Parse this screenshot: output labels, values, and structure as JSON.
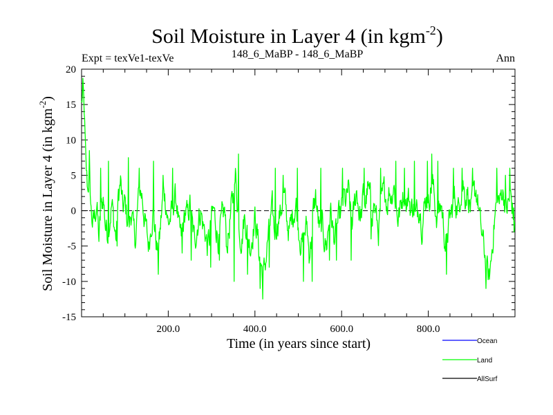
{
  "chart_data": {
    "type": "line",
    "title": "Soil Moisture in Layer 4 (in kgm",
    "title_sup": "-2",
    "title_close": ")",
    "subtitle_left": "Expt = texVe1-texVe",
    "subtitle_center": "148_6_MaBP - 148_6_MaBP",
    "subtitle_right": "Ann",
    "xlabel": "Time (in years since start)",
    "ylabel": "Soil Moisture in Layer 4 (in kgm",
    "ylabel_sup": "-2",
    "ylabel_close": ")",
    "xlim": [
      0,
      1000
    ],
    "ylim": [
      -15,
      20
    ],
    "xticks": [
      200,
      400,
      600,
      800
    ],
    "xtick_labels": [
      "200.0",
      "400.0",
      "600.0",
      "800.0"
    ],
    "yticks": [
      -15,
      -10,
      -5,
      0,
      5,
      10,
      15,
      20
    ],
    "ytick_labels": [
      "-15",
      "-10",
      "-5",
      "0",
      "5",
      "10",
      "15",
      "20"
    ],
    "zero_line": 0,
    "legend_position": "bottom-right",
    "series": [
      {
        "name": "Ocean",
        "color": "#0000ff",
        "values": []
      },
      {
        "name": "Land",
        "color": "#00ff00",
        "anchors": [
          [
            0,
            15
          ],
          [
            3,
            17
          ],
          [
            6,
            14
          ],
          [
            10,
            6
          ],
          [
            14,
            3
          ],
          [
            18,
            5
          ],
          [
            22,
            0
          ],
          [
            26,
            -2
          ],
          [
            30,
            -1
          ],
          [
            35,
            1
          ],
          [
            40,
            -4
          ],
          [
            45,
            0
          ],
          [
            50,
            2
          ],
          [
            55,
            -2
          ],
          [
            60,
            -3
          ],
          [
            65,
            -1
          ],
          [
            70,
            1
          ],
          [
            75,
            -2
          ],
          [
            80,
            -4
          ],
          [
            85,
            2
          ],
          [
            90,
            4
          ],
          [
            95,
            0
          ],
          [
            100,
            1
          ],
          [
            105,
            -1
          ],
          [
            110,
            -2
          ],
          [
            115,
            0
          ],
          [
            120,
            -3
          ],
          [
            125,
            -4
          ],
          [
            130,
            1
          ],
          [
            135,
            3
          ],
          [
            140,
            2
          ],
          [
            145,
            -1
          ],
          [
            150,
            -3
          ],
          [
            155,
            -5
          ],
          [
            160,
            -2
          ],
          [
            165,
            0
          ],
          [
            170,
            -3
          ],
          [
            175,
            -6
          ],
          [
            180,
            -4
          ],
          [
            185,
            0
          ],
          [
            190,
            3
          ],
          [
            195,
            1
          ],
          [
            200,
            -2
          ],
          [
            205,
            -1
          ],
          [
            210,
            0
          ],
          [
            215,
            2
          ],
          [
            220,
            1
          ],
          [
            225,
            -3
          ],
          [
            230,
            -4
          ],
          [
            235,
            -2
          ],
          [
            240,
            0
          ],
          [
            245,
            -1
          ],
          [
            250,
            1
          ],
          [
            255,
            -2
          ],
          [
            260,
            -4
          ],
          [
            265,
            -3
          ],
          [
            270,
            -1
          ],
          [
            275,
            0
          ],
          [
            280,
            -2
          ],
          [
            285,
            -3
          ],
          [
            290,
            -5
          ],
          [
            295,
            -4
          ],
          [
            300,
            -1
          ],
          [
            305,
            0
          ],
          [
            310,
            -2
          ],
          [
            315,
            -4
          ],
          [
            320,
            -3
          ],
          [
            325,
            -1
          ],
          [
            330,
            0
          ],
          [
            335,
            -5
          ],
          [
            340,
            -3
          ],
          [
            345,
            0
          ],
          [
            350,
            2
          ],
          [
            355,
            5
          ],
          [
            360,
            1
          ],
          [
            365,
            -3
          ],
          [
            370,
            -4
          ],
          [
            375,
            -1
          ],
          [
            380,
            -2
          ],
          [
            385,
            -4
          ],
          [
            390,
            -5
          ],
          [
            395,
            -3
          ],
          [
            400,
            -1
          ],
          [
            405,
            -3
          ],
          [
            410,
            -6
          ],
          [
            415,
            -8
          ],
          [
            420,
            -9
          ],
          [
            425,
            -7
          ],
          [
            430,
            -4
          ],
          [
            435,
            -2
          ],
          [
            440,
            0
          ],
          [
            445,
            -3
          ],
          [
            450,
            -2
          ],
          [
            455,
            -1
          ],
          [
            460,
            0
          ],
          [
            465,
            2
          ],
          [
            470,
            1
          ],
          [
            475,
            -2
          ],
          [
            480,
            -3
          ],
          [
            485,
            -1
          ],
          [
            490,
            0
          ],
          [
            495,
            1
          ],
          [
            500,
            -2
          ],
          [
            505,
            -4
          ],
          [
            510,
            -5
          ],
          [
            515,
            -3
          ],
          [
            520,
            -2
          ],
          [
            525,
            -6
          ],
          [
            530,
            -4
          ],
          [
            535,
            0
          ],
          [
            540,
            2
          ],
          [
            545,
            -1
          ],
          [
            550,
            -3
          ],
          [
            555,
            -2
          ],
          [
            560,
            -4
          ],
          [
            565,
            -5
          ],
          [
            570,
            -2
          ],
          [
            575,
            0
          ],
          [
            580,
            -3
          ],
          [
            585,
            -4
          ],
          [
            590,
            -2
          ],
          [
            595,
            -1
          ],
          [
            600,
            0
          ],
          [
            605,
            2
          ],
          [
            610,
            1
          ],
          [
            615,
            3
          ],
          [
            620,
            0
          ],
          [
            625,
            -2
          ],
          [
            630,
            1
          ],
          [
            635,
            3
          ],
          [
            640,
            0
          ],
          [
            645,
            -1
          ],
          [
            650,
            2
          ],
          [
            655,
            1
          ],
          [
            660,
            3
          ],
          [
            665,
            2
          ],
          [
            670,
            0
          ],
          [
            675,
            1
          ],
          [
            680,
            -1
          ],
          [
            685,
            -3
          ],
          [
            690,
            0
          ],
          [
            695,
            2
          ],
          [
            700,
            3
          ],
          [
            705,
            1
          ],
          [
            710,
            3
          ],
          [
            715,
            2
          ],
          [
            720,
            4
          ],
          [
            725,
            1
          ],
          [
            730,
            -1
          ],
          [
            735,
            0
          ],
          [
            740,
            2
          ],
          [
            745,
            3
          ],
          [
            750,
            1
          ],
          [
            755,
            2
          ],
          [
            760,
            0
          ],
          [
            765,
            1
          ],
          [
            770,
            -1
          ],
          [
            775,
            0
          ],
          [
            780,
            1
          ],
          [
            785,
            -2
          ],
          [
            790,
            0
          ],
          [
            795,
            2
          ],
          [
            800,
            1
          ],
          [
            805,
            3
          ],
          [
            810,
            4
          ],
          [
            815,
            1
          ],
          [
            820,
            -1
          ],
          [
            825,
            0
          ],
          [
            830,
            1
          ],
          [
            835,
            -2
          ],
          [
            840,
            -5
          ],
          [
            845,
            -3
          ],
          [
            850,
            -1
          ],
          [
            855,
            0
          ],
          [
            860,
            2
          ],
          [
            865,
            1
          ],
          [
            870,
            0
          ],
          [
            875,
            3
          ],
          [
            880,
            4
          ],
          [
            885,
            2
          ],
          [
            890,
            3
          ],
          [
            895,
            1
          ],
          [
            900,
            0
          ],
          [
            905,
            2
          ],
          [
            910,
            3
          ],
          [
            915,
            1
          ],
          [
            920,
            -2
          ],
          [
            925,
            -4
          ],
          [
            930,
            -6
          ],
          [
            935,
            -8
          ],
          [
            940,
            -10
          ],
          [
            945,
            -7
          ],
          [
            950,
            -3
          ],
          [
            955,
            0
          ],
          [
            960,
            2
          ],
          [
            965,
            1
          ],
          [
            970,
            3
          ],
          [
            975,
            2
          ],
          [
            980,
            0
          ],
          [
            985,
            1
          ],
          [
            990,
            2
          ],
          [
            995,
            0
          ],
          [
            999,
            -1
          ]
        ],
        "spikes": [
          [
            18,
            8.5
          ],
          [
            44,
            6
          ],
          [
            62,
            7
          ],
          [
            82,
            -5
          ],
          [
            108,
            7.5
          ],
          [
            133,
            6
          ],
          [
            166,
            7
          ],
          [
            177,
            -9
          ],
          [
            188,
            5
          ],
          [
            210,
            6
          ],
          [
            232,
            -6
          ],
          [
            253,
            -7
          ],
          [
            298,
            -8
          ],
          [
            318,
            -7
          ],
          [
            352,
            -10
          ],
          [
            362,
            8
          ],
          [
            383,
            -9
          ],
          [
            412,
            -11
          ],
          [
            418,
            -12.5
          ],
          [
            433,
            -8
          ],
          [
            447,
            6
          ],
          [
            465,
            5
          ],
          [
            498,
            6
          ],
          [
            512,
            -10
          ],
          [
            532,
            -10
          ],
          [
            552,
            6
          ],
          [
            572,
            -7
          ],
          [
            588,
            -7
          ],
          [
            602,
            6
          ],
          [
            622,
            -7
          ],
          [
            652,
            6
          ],
          [
            668,
            -4
          ],
          [
            690,
            6
          ],
          [
            725,
            7
          ],
          [
            745,
            6
          ],
          [
            768,
            7
          ],
          [
            798,
            7
          ],
          [
            808,
            8
          ],
          [
            822,
            7
          ],
          [
            842,
            -9
          ],
          [
            858,
            6
          ],
          [
            878,
            6
          ],
          [
            902,
            6
          ],
          [
            933,
            -11
          ],
          [
            958,
            6
          ],
          [
            978,
            5
          ],
          [
            988,
            6
          ],
          [
            998,
            -3
          ]
        ]
      },
      {
        "name": "AllSurf",
        "color": "#000000",
        "values": []
      }
    ]
  }
}
